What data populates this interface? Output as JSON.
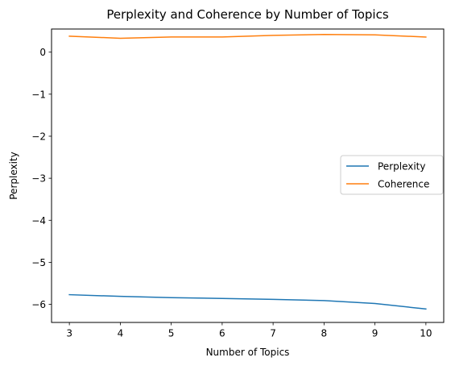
{
  "chart_data": {
    "type": "line",
    "title": "Perplexity and Coherence by Number of Topics",
    "xlabel": "Number of Topics",
    "ylabel": "Perplexity",
    "x": [
      3,
      4,
      5,
      6,
      7,
      8,
      9,
      10
    ],
    "x_ticks": [
      "3",
      "4",
      "5",
      "6",
      "7",
      "8",
      "9",
      "10"
    ],
    "y_ticks": [
      0,
      -1,
      -2,
      -3,
      -4,
      -5,
      -6
    ],
    "y_tick_labels": [
      "0",
      "−1",
      "−2",
      "−3",
      "−4",
      "−5",
      "−6"
    ],
    "xlim": [
      2.65,
      10.35
    ],
    "ylim": [
      -6.43,
      0.55
    ],
    "grid": false,
    "legend_position": "center-right",
    "series": [
      {
        "name": "Perplexity",
        "color": "#1f77b4",
        "values": [
          -5.77,
          -5.81,
          -5.84,
          -5.86,
          -5.88,
          -5.91,
          -5.98,
          -6.11
        ]
      },
      {
        "name": "Coherence",
        "color": "#ff7f0e",
        "values": [
          0.38,
          0.33,
          0.36,
          0.36,
          0.4,
          0.42,
          0.41,
          0.36
        ]
      }
    ]
  }
}
